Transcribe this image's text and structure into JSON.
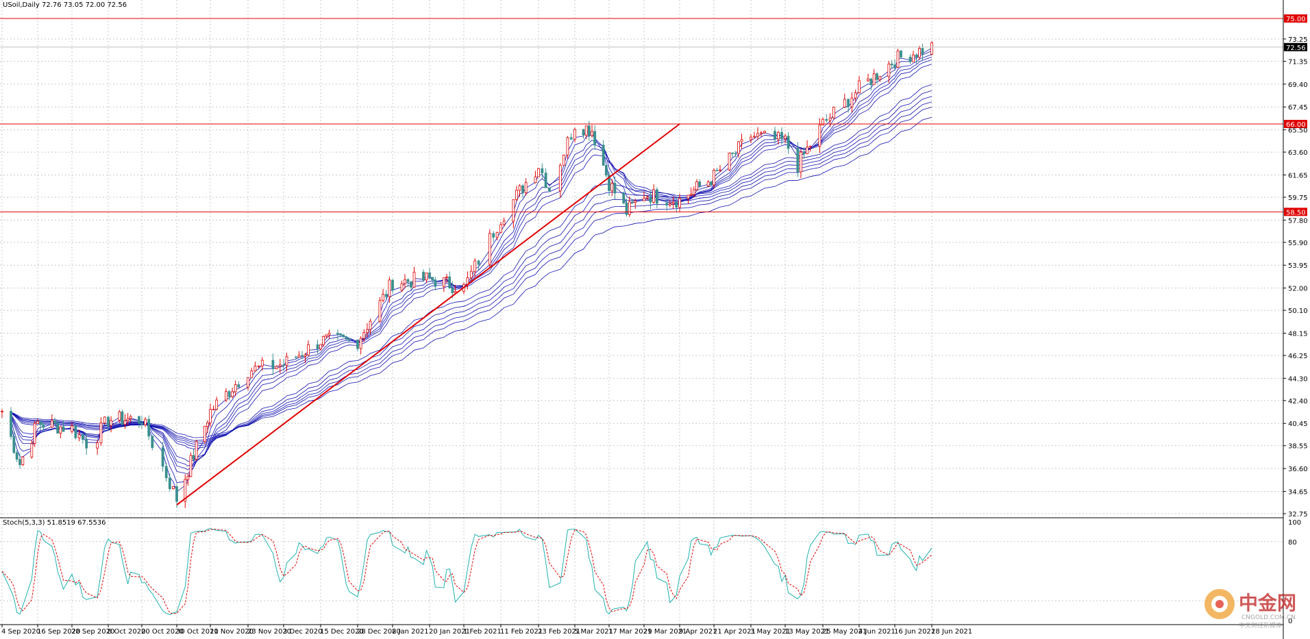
{
  "header": {
    "symbol_line": "USoil,Daily  72.76 73.05 72.00 72.56"
  },
  "indicator": {
    "label": "Stoch(5,3,3) 51.8519 67.5536",
    "levels": [
      "100",
      "80",
      "0"
    ]
  },
  "watermark": {
    "brand_cn": "中金网",
    "brand_en": "CNGOLD.COM.CN",
    "tagline": "中文财经新媒体"
  },
  "colors": {
    "bull_candle": "#e00000",
    "bear_candle": "#3a8f8f",
    "ma_line": "#1010b0",
    "level_line": "#e00000",
    "trend_line": "#e00000",
    "stoch_main": "#20b0b0",
    "stoch_signal": "#e00000",
    "grid": "#c8c8c8"
  },
  "chart_data": {
    "type": "candlestick",
    "symbol": "USoil",
    "timeframe": "Daily",
    "ohlc_current": {
      "open": 72.76,
      "high": 73.05,
      "low": 72.0,
      "close": 72.56
    },
    "current_price_label": "72.56",
    "ylim": [
      32.75,
      75.0
    ],
    "y_ticks": [
      "73.25",
      "71.35",
      "69.40",
      "67.45",
      "65.50",
      "63.60",
      "61.65",
      "59.75",
      "57.80",
      "55.90",
      "53.95",
      "52.00",
      "50.10",
      "48.15",
      "46.25",
      "44.30",
      "42.40",
      "40.45",
      "38.55",
      "36.60",
      "34.65",
      "32.75"
    ],
    "x_ticks": [
      "4 Sep 2020",
      "16 Sep 2020",
      "28 Sep 2020",
      "8 Oct 2020",
      "20 Oct 2020",
      "30 Oct 2020",
      "11 Nov 2020",
      "23 Nov 2020",
      "3 Dec 2020",
      "15 Dec 2020",
      "28 Dec 2020",
      "8 Jan 2021",
      "20 Jan 2021",
      "1 Feb 2021",
      "11 Feb 2021",
      "23 Feb 2021",
      "5 Mar 2021",
      "17 Mar 2021",
      "29 Mar 2021",
      "9 Apr 2021",
      "21 Apr 2021",
      "3 May 2021",
      "13 May 2021",
      "25 May 2021",
      "4 Jun 2021",
      "16 Jun 2021",
      "28 Jun 2021"
    ],
    "horizontal_levels": [
      {
        "value": 75.0,
        "label": "75.00"
      },
      {
        "value": 66.0,
        "label": "66.00"
      },
      {
        "value": 58.5,
        "label": "58.50"
      }
    ],
    "trendline": {
      "from": {
        "date": "30 Oct 2020",
        "value": 33.5
      },
      "to": {
        "date": "9 Apr 2021",
        "value": 66.0
      }
    },
    "price_anchors": [
      {
        "date": "4 Sep 2020",
        "value": 41.5
      },
      {
        "date": "10 Sep 2020",
        "value": 37.0
      },
      {
        "date": "16 Sep 2020",
        "value": 40.5
      },
      {
        "date": "28 Sep 2020",
        "value": 40.0
      },
      {
        "date": "3 Oct 2020",
        "value": 38.5
      },
      {
        "date": "8 Oct 2020",
        "value": 40.8
      },
      {
        "date": "20 Oct 2020",
        "value": 40.8
      },
      {
        "date": "30 Oct 2020",
        "value": 34.0
      },
      {
        "date": "11 Nov 2020",
        "value": 41.5
      },
      {
        "date": "23 Nov 2020",
        "value": 45.0
      },
      {
        "date": "3 Dec 2020",
        "value": 45.5
      },
      {
        "date": "15 Dec 2020",
        "value": 47.5
      },
      {
        "date": "28 Dec 2020",
        "value": 47.5
      },
      {
        "date": "8 Jan 2021",
        "value": 52.5
      },
      {
        "date": "20 Jan 2021",
        "value": 52.8
      },
      {
        "date": "1 Feb 2021",
        "value": 52.0
      },
      {
        "date": "11 Feb 2021",
        "value": 58.0
      },
      {
        "date": "23 Feb 2021",
        "value": 62.5
      },
      {
        "date": "26 Feb 2021",
        "value": 60.5
      },
      {
        "date": "5 Mar 2021",
        "value": 66.0
      },
      {
        "date": "11 Mar 2021",
        "value": 65.5
      },
      {
        "date": "17 Mar 2021",
        "value": 61.0
      },
      {
        "date": "23 Mar 2021",
        "value": 58.5
      },
      {
        "date": "29 Mar 2021",
        "value": 60.0
      },
      {
        "date": "9 Apr 2021",
        "value": 59.5
      },
      {
        "date": "21 Apr 2021",
        "value": 61.5
      },
      {
        "date": "3 May 2021",
        "value": 65.0
      },
      {
        "date": "13 May 2021",
        "value": 64.5
      },
      {
        "date": "17 May 2021",
        "value": 62.5
      },
      {
        "date": "25 May 2021",
        "value": 66.0
      },
      {
        "date": "4 Jun 2021",
        "value": 69.0
      },
      {
        "date": "16 Jun 2021",
        "value": 71.5
      },
      {
        "date": "28 Jun 2021",
        "value": 72.6
      }
    ]
  }
}
